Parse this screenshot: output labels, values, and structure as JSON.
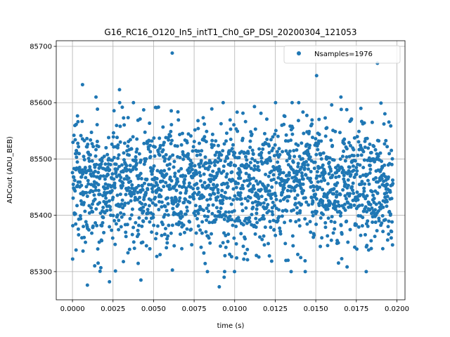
{
  "chart_data": {
    "type": "scatter",
    "title": "G16_RC16_O120_In5_intT1_Ch0_GP_DSI_20200304_121053",
    "xlabel": "time (s)",
    "ylabel": "ADCout (ADU_BEB)",
    "xlim": [
      -0.001,
      0.0205
    ],
    "ylim": [
      85250,
      85710
    ],
    "x_ticks": [
      0.0,
      0.0025,
      0.005,
      0.0075,
      0.01,
      0.0125,
      0.015,
      0.0175,
      0.02
    ],
    "x_tick_labels": [
      "0.0000",
      "0.0025",
      "0.0050",
      "0.0075",
      "0.0100",
      "0.0125",
      "0.0150",
      "0.0175",
      "0.0200"
    ],
    "y_ticks": [
      85300,
      85400,
      85500,
      85600,
      85700
    ],
    "y_tick_labels": [
      "85300",
      "85400",
      "85500",
      "85600",
      "85700"
    ],
    "grid": true,
    "legend_position": "top-right",
    "series": [
      {
        "name": "Nsamples=1976",
        "color": "#1f77b4",
        "marker": "circle",
        "n_samples": 1976,
        "x_start": 0.0,
        "x_end": 0.01975,
        "mean": 85455,
        "std": 58,
        "visible_extremes": [
          {
            "x": 0.00062,
            "y": 85632
          },
          {
            "x": 0.00092,
            "y": 85276
          },
          {
            "x": 0.00228,
            "y": 85282
          },
          {
            "x": 0.00422,
            "y": 85285
          },
          {
            "x": 0.00615,
            "y": 85688
          },
          {
            "x": 0.00905,
            "y": 85273
          },
          {
            "x": 0.00935,
            "y": 85290
          },
          {
            "x": 0.01505,
            "y": 85648
          },
          {
            "x": 0.01655,
            "y": 85610
          },
          {
            "x": 0.0188,
            "y": 85670
          },
          {
            "x": 0.00145,
            "y": 85610
          },
          {
            "x": 0.0029,
            "y": 85623
          }
        ]
      }
    ]
  }
}
